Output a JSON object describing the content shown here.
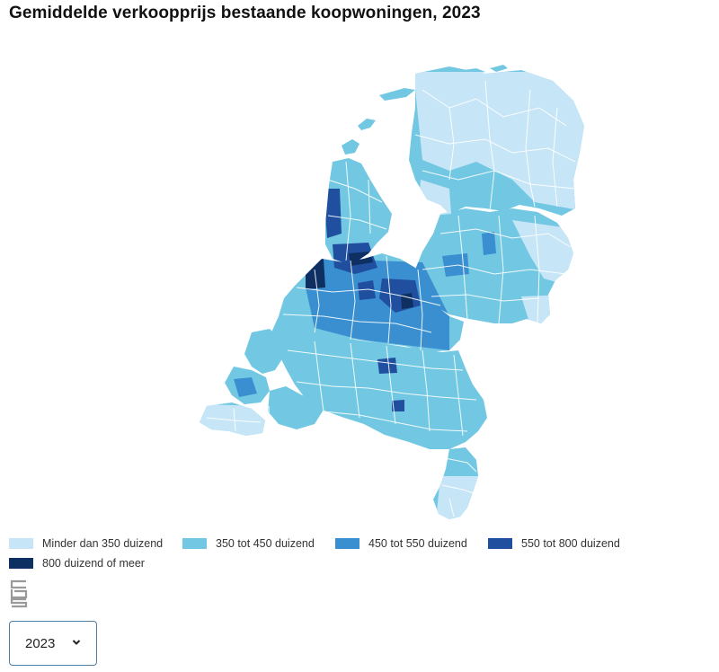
{
  "title": "Gemiddelde verkoopprijs bestaande koopwoningen, 2023",
  "legend": [
    {
      "label": "Minder dan 350 duizend",
      "color": "#c6e5f7"
    },
    {
      "label": "350 tot 450 duizend",
      "color": "#72c8e2"
    },
    {
      "label": "450 tot 550 duizend",
      "color": "#3a8fd0"
    },
    {
      "label": "550 tot 800 duizend",
      "color": "#1f4f9e"
    },
    {
      "label": "800 duizend of meer",
      "color": "#0d2f62"
    }
  ],
  "logo_icon": "cbs-logo-icon",
  "year_select": {
    "value": "2023",
    "icon": "chevron-down-icon"
  }
}
